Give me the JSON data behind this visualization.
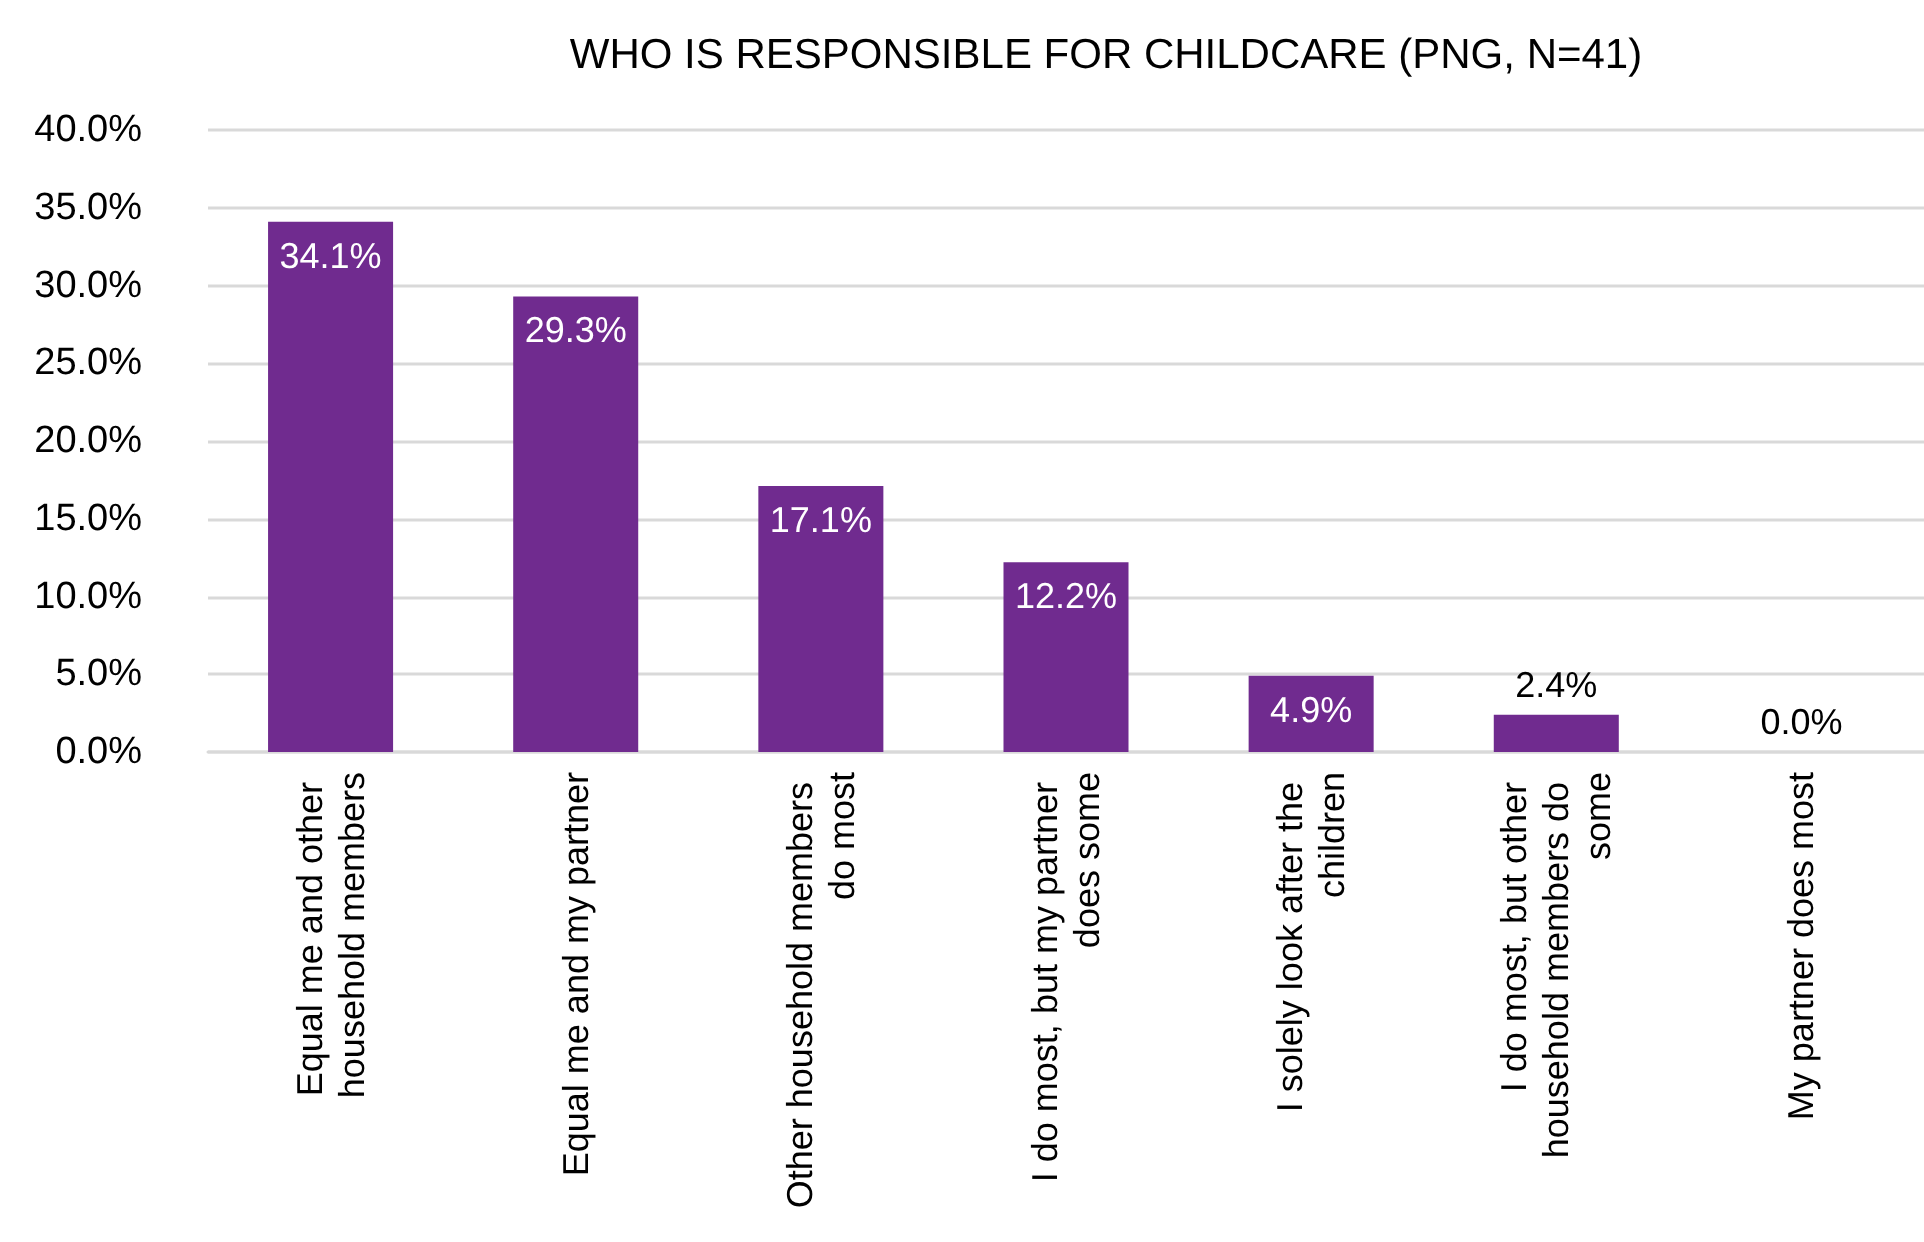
{
  "chart_data": {
    "type": "bar",
    "title": "WHO IS RESPONSIBLE FOR CHILDCARE (PNG, N=41)",
    "categories": [
      "Equal me and other household members",
      "Equal me and my partner",
      "Other household members do most",
      "I do most, but my partner does some",
      "I solely look after the children",
      "I do most, but other household members do some",
      "My partner does most"
    ],
    "values": [
      34.1,
      29.3,
      17.1,
      12.2,
      4.9,
      2.4,
      0.0
    ],
    "value_labels": [
      "34.1%",
      "29.3%",
      "17.1%",
      "12.2%",
      "4.9%",
      "2.4%",
      "0.0%"
    ],
    "color": "#702b8f",
    "ylim": [
      0,
      40
    ],
    "yticks": [
      {
        "value": 0,
        "label": "0.0%"
      },
      {
        "value": 5,
        "label": "5.0%"
      },
      {
        "value": 10,
        "label": "10.0%"
      },
      {
        "value": 15,
        "label": "15.0%"
      },
      {
        "value": 20,
        "label": "20.0%"
      },
      {
        "value": 25,
        "label": "25.0%"
      },
      {
        "value": 30,
        "label": "30.0%"
      },
      {
        "value": 35,
        "label": "35.0%"
      },
      {
        "value": 40,
        "label": "40.0%"
      }
    ],
    "grid": "y"
  }
}
